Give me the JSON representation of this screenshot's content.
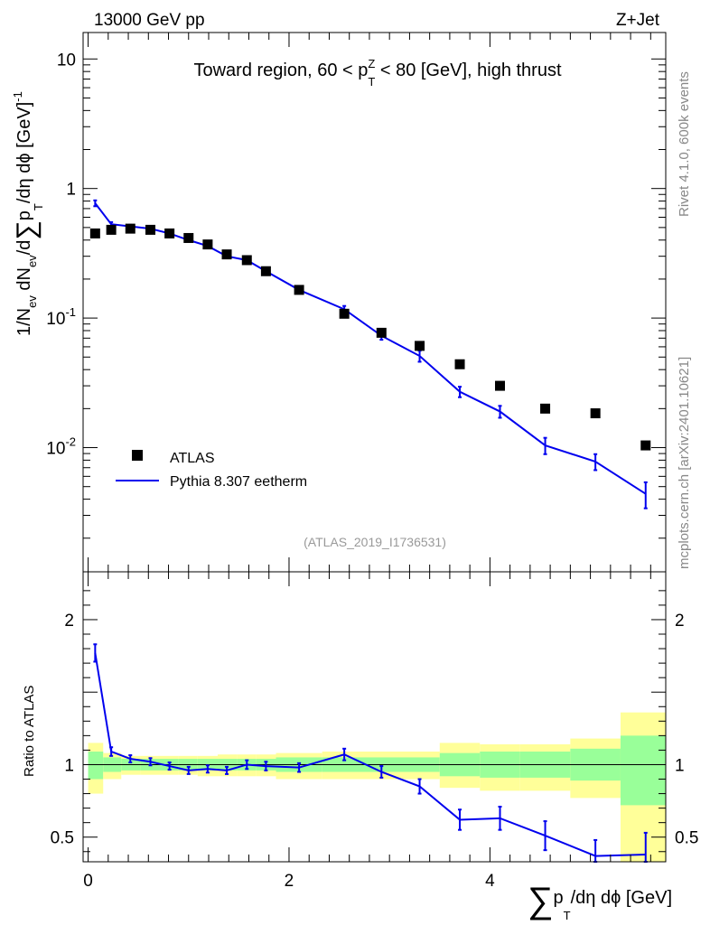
{
  "header": {
    "energy_label": "13000 GeV pp",
    "process_label": "Z+Jet"
  },
  "side_labels": {
    "rivet": "Rivet 4.1.0,  600k events",
    "mcplots": "mcplots.cern.ch [arXiv:2401.10621]"
  },
  "chart_data": [
    {
      "type": "scatter",
      "title": "Toward region, 60 < p_T^Z < 80 [GeV], high thrust",
      "title_parts": {
        "pre": "Toward region, 60 < p",
        "sub": "T",
        "sup": "Z",
        "post": " < 80 [GeV], high thrust"
      },
      "ylabel": "1/N_ev dN_ev/d∑p_T/dη dϕ [GeV]^-1",
      "ylabel_parts": {
        "a": "1/N",
        "a_sub": "ev",
        "b": " dN",
        "b_sub": "ev",
        "c": "/d",
        "sigma": "∑",
        "d": "p",
        "d_sub": "T",
        "e": "/dη dϕ  [GeV]",
        "e_sup": "-1"
      },
      "yscale": "log",
      "ylim": [
        0.0011,
        16
      ],
      "yticks": [
        {
          "value": 10,
          "label": "10",
          "sup": ""
        },
        {
          "value": 1,
          "label": "1",
          "sup": ""
        },
        {
          "value": 0.1,
          "label": "10",
          "sup": "-1"
        },
        {
          "value": 0.01,
          "label": "10",
          "sup": "-2"
        }
      ],
      "xlim": [
        -0.05,
        5.75
      ],
      "analysis_tag": "(ATLAS_2019_I1736531)",
      "legend_position": "lower-left",
      "legend": [
        "ATLAS",
        "Pythia 8.307 eetherm"
      ],
      "series": [
        {
          "name": "ATLAS",
          "x": [
            0.07,
            0.23,
            0.42,
            0.62,
            0.81,
            1.0,
            1.19,
            1.38,
            1.58,
            1.77,
            2.1,
            2.55,
            2.92,
            3.3,
            3.7,
            4.1,
            4.55,
            5.05,
            5.55
          ],
          "y": [
            0.45,
            0.48,
            0.49,
            0.48,
            0.45,
            0.415,
            0.37,
            0.31,
            0.28,
            0.23,
            0.165,
            0.108,
            0.077,
            0.061,
            0.044,
            0.03,
            0.02,
            0.0184,
            0.0104
          ]
        },
        {
          "name": "Pythia 8.307 eetherm",
          "x": [
            0.07,
            0.23,
            0.42,
            0.62,
            0.81,
            1.0,
            1.19,
            1.38,
            1.58,
            1.77,
            2.1,
            2.55,
            2.92,
            3.3,
            3.7,
            4.1,
            4.55,
            5.05,
            5.55
          ],
          "y": [
            0.77,
            0.53,
            0.51,
            0.49,
            0.45,
            0.4,
            0.36,
            0.3,
            0.28,
            0.23,
            0.165,
            0.117,
            0.073,
            0.051,
            0.027,
            0.019,
            0.0104,
            0.0078,
            0.0044
          ],
          "yerr": [
            0.04,
            0.02,
            0.015,
            0.012,
            0.012,
            0.01,
            0.01,
            0.01,
            0.01,
            0.008,
            0.006,
            0.007,
            0.005,
            0.005,
            0.0025,
            0.002,
            0.0015,
            0.0011,
            0.001
          ]
        }
      ]
    },
    {
      "type": "line",
      "title": "",
      "ylabel": "Ratio to ATLAS",
      "xlabel": "∑p_T/dη dϕ [GeV]",
      "xlabel_parts": {
        "sigma": "∑",
        "a": "p",
        "a_sub": "T",
        "b": "/dη dϕ [GeV]"
      },
      "xlim": [
        -0.05,
        5.75
      ],
      "ylim": [
        0.33,
        2.33
      ],
      "xticks": [
        0,
        2,
        4
      ],
      "yticks": [
        0.5,
        1,
        2
      ],
      "reference_line": 1,
      "bands": {
        "edges": [
          0.0,
          0.15,
          0.33,
          0.52,
          0.71,
          0.9,
          1.09,
          1.29,
          1.48,
          1.67,
          1.87,
          2.33,
          2.76,
          3.5,
          3.9,
          4.3,
          4.8,
          5.3,
          5.8
        ],
        "green_lo": [
          0.9,
          0.95,
          0.96,
          0.96,
          0.96,
          0.96,
          0.96,
          0.96,
          0.96,
          0.96,
          0.95,
          0.95,
          0.95,
          0.92,
          0.91,
          0.91,
          0.89,
          0.72
        ],
        "green_hi": [
          1.09,
          1.05,
          1.04,
          1.04,
          1.04,
          1.04,
          1.04,
          1.04,
          1.04,
          1.04,
          1.05,
          1.05,
          1.05,
          1.08,
          1.09,
          1.09,
          1.11,
          1.2
        ],
        "yellow_lo": [
          0.8,
          0.9,
          0.93,
          0.93,
          0.93,
          0.93,
          0.92,
          0.92,
          0.92,
          0.92,
          0.9,
          0.9,
          0.9,
          0.84,
          0.82,
          0.82,
          0.77,
          0.33
        ],
        "yellow_hi": [
          1.15,
          1.08,
          1.06,
          1.06,
          1.06,
          1.06,
          1.06,
          1.07,
          1.07,
          1.07,
          1.08,
          1.09,
          1.09,
          1.15,
          1.14,
          1.14,
          1.18,
          1.36
        ]
      },
      "series": [
        {
          "name": "Pythia 8.307 eetherm / ATLAS",
          "x": [
            0.07,
            0.23,
            0.42,
            0.62,
            0.81,
            1.0,
            1.19,
            1.38,
            1.58,
            1.77,
            2.1,
            2.55,
            2.92,
            3.3,
            3.7,
            4.1,
            4.55,
            5.05,
            5.55
          ],
          "y": [
            1.77,
            1.09,
            1.04,
            1.02,
            0.99,
            0.96,
            0.97,
            0.96,
            1.0,
            0.99,
            0.98,
            1.07,
            0.95,
            0.85,
            0.62,
            0.63,
            0.51,
            0.37,
            0.38
          ],
          "yerr": [
            0.06,
            0.03,
            0.025,
            0.025,
            0.025,
            0.025,
            0.025,
            0.025,
            0.03,
            0.03,
            0.03,
            0.04,
            0.04,
            0.05,
            0.07,
            0.08,
            0.1,
            0.11,
            0.15
          ]
        }
      ]
    }
  ]
}
